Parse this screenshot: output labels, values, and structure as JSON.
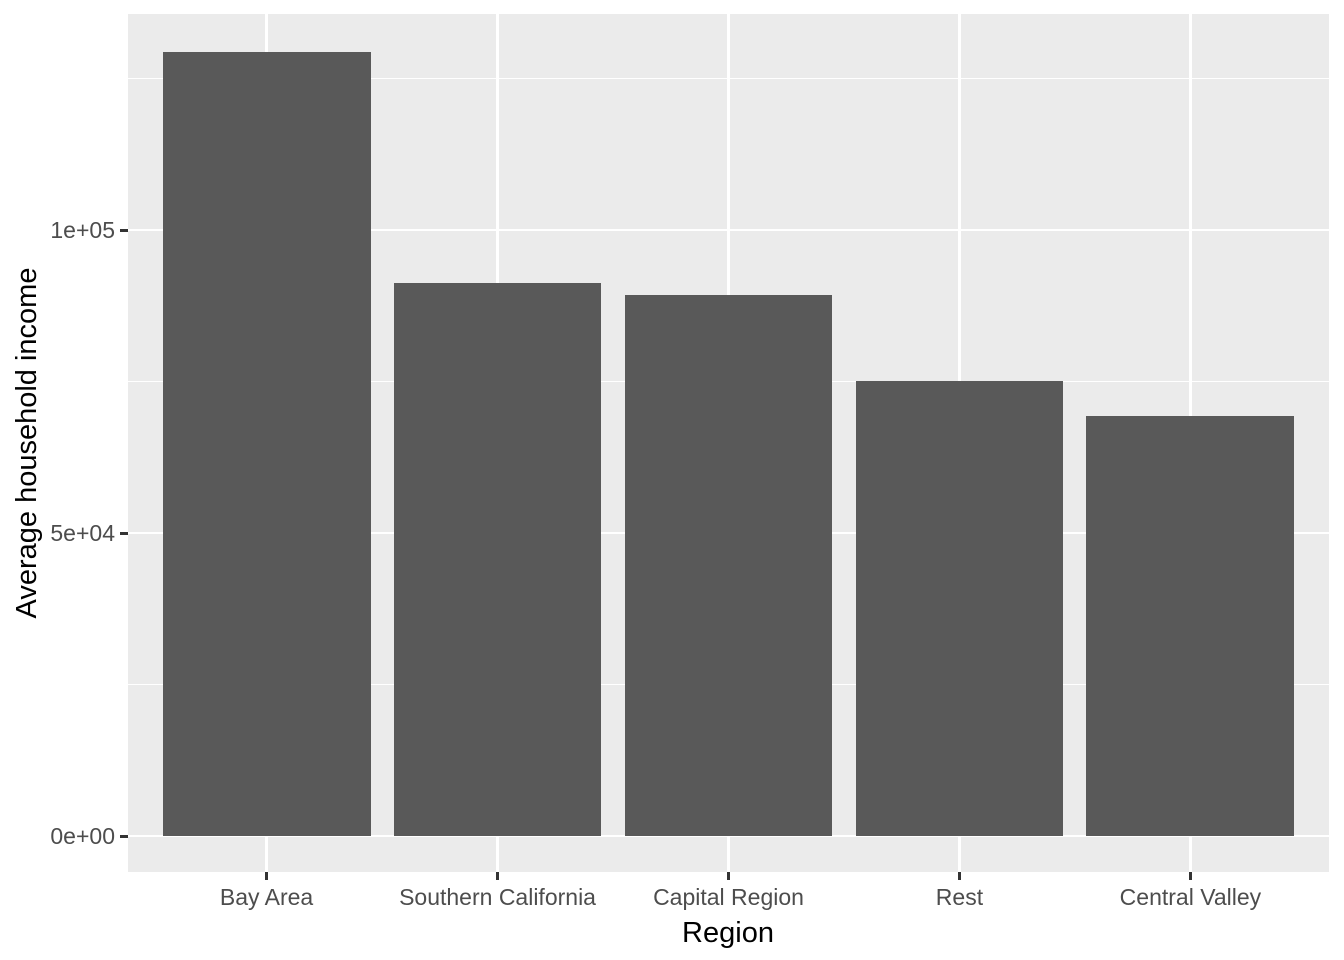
{
  "chart_data": {
    "type": "bar",
    "title": "",
    "xlabel": "Region",
    "ylabel": "Average household income",
    "categories": [
      "Bay Area",
      "Southern California",
      "Capital Region",
      "Rest",
      "Central Valley"
    ],
    "values": [
      129400,
      91300,
      89300,
      75100,
      69300
    ],
    "y_axis": {
      "ticks": [
        {
          "value": 0,
          "label": "0e+00"
        },
        {
          "value": 50000,
          "label": "5e+04"
        },
        {
          "value": 100000,
          "label": "1e+05"
        }
      ],
      "minor_ticks": [
        25000,
        75000,
        125000
      ],
      "lim": [
        0,
        135650
      ]
    },
    "grid": "major-and-minor-on",
    "legend_position": "none",
    "style": {
      "bar_fill": "#595959",
      "panel_background": "#EBEBEB",
      "grid_color": "#FFFFFF",
      "tick_label_color": "#4D4D4D",
      "axis_title_color": "#000000",
      "tick_mark_color": "#333333",
      "page_background": "#FFFFFF"
    }
  }
}
